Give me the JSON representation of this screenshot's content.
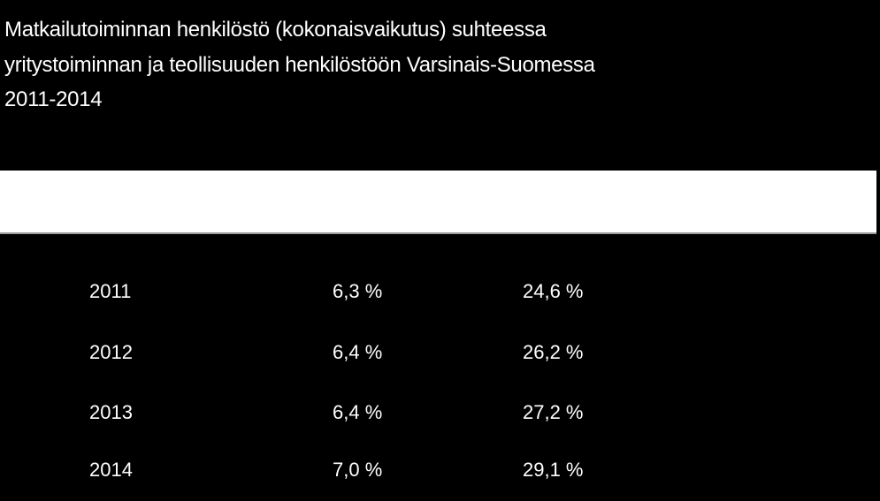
{
  "header": {
    "title": [
      "Matkailutoiminnan henkilöstö (kokonaisvaikutus) suhteessa",
      "yritystoiminnan ja teollisuuden henkilöstöön Varsinais-Suomessa",
      "2011-2014"
    ]
  },
  "table": {
    "rows": [
      [
        "2011",
        "6,3 %",
        "24,6 %"
      ],
      [
        "2012",
        "6,4 %",
        "26,2 %"
      ],
      [
        "2013",
        "6,4 %",
        "27,2 %"
      ],
      [
        "2014",
        "7,0 %",
        "29,1 %"
      ]
    ]
  }
}
